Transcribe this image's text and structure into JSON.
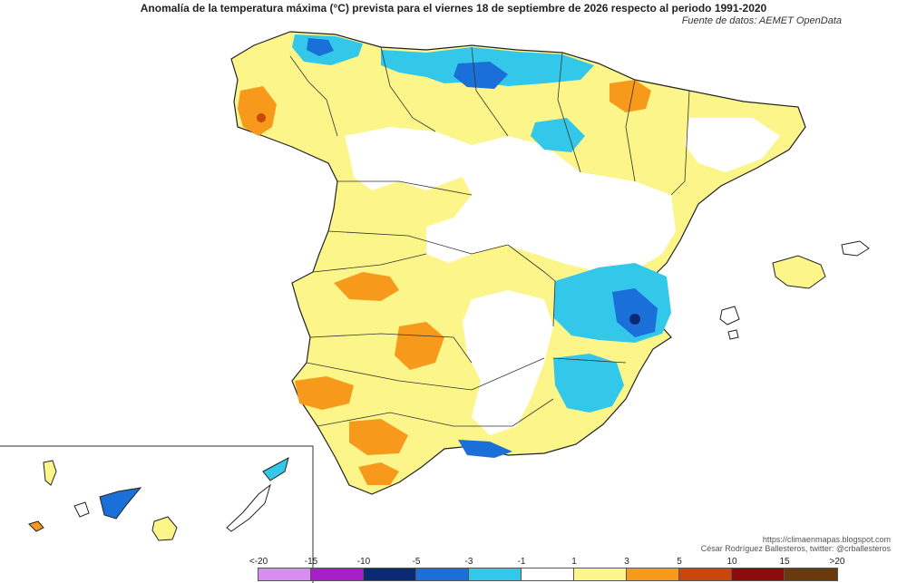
{
  "title": "Anomalía de la temperatura máxima (°C) prevista para el viernes 18 de septiembre de 2026 respecto al periodo 1991-2020",
  "source": "Fuente de datos: AEMET OpenData",
  "credits": {
    "line1": "https://climaenmapas.blogspot.com",
    "line2": "César Rodríguez Ballesteros, twitter: @crballesteros"
  },
  "legend": {
    "labels": [
      "<-20",
      "-15",
      "-10",
      "-5",
      "-3",
      "-1",
      "1",
      "3",
      "5",
      "10",
      "15",
      ">20"
    ],
    "colors": [
      "#d78ef0",
      "#a61ec8",
      "#0a2b73",
      "#1a6fd8",
      "#33c8ea",
      "#ffffff",
      "#fbf58a",
      "#f79a1c",
      "#c9470b",
      "#8c0c0c",
      "#6b3a0a"
    ]
  }
}
